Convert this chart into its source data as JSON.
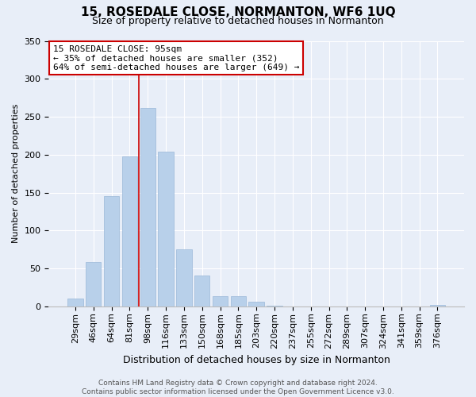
{
  "title": "15, ROSEDALE CLOSE, NORMANTON, WF6 1UQ",
  "subtitle": "Size of property relative to detached houses in Normanton",
  "xlabel": "Distribution of detached houses by size in Normanton",
  "ylabel": "Number of detached properties",
  "bar_labels": [
    "29sqm",
    "46sqm",
    "64sqm",
    "81sqm",
    "98sqm",
    "116sqm",
    "133sqm",
    "150sqm",
    "168sqm",
    "185sqm",
    "203sqm",
    "220sqm",
    "237sqm",
    "255sqm",
    "272sqm",
    "289sqm",
    "307sqm",
    "324sqm",
    "341sqm",
    "359sqm",
    "376sqm"
  ],
  "bar_values": [
    10,
    58,
    145,
    198,
    262,
    204,
    75,
    41,
    13,
    14,
    6,
    1,
    0,
    0,
    0,
    0,
    0,
    0,
    0,
    0,
    2
  ],
  "bar_color": "#b8d0ea",
  "bar_edge_color": "#9ab8d8",
  "vline_color": "#cc0000",
  "vline_x_index": 3.5,
  "ylim": [
    0,
    350
  ],
  "yticks": [
    0,
    50,
    100,
    150,
    200,
    250,
    300,
    350
  ],
  "annotation_title": "15 ROSEDALE CLOSE: 95sqm",
  "annotation_line1": "← 35% of detached houses are smaller (352)",
  "annotation_line2": "64% of semi-detached houses are larger (649) →",
  "annotation_box_facecolor": "#ffffff",
  "annotation_box_edgecolor": "#cc0000",
  "footer_line1": "Contains HM Land Registry data © Crown copyright and database right 2024.",
  "footer_line2": "Contains public sector information licensed under the Open Government Licence v3.0.",
  "bg_color": "#e8eef8",
  "plot_bg_color": "#e8eef8",
  "grid_color": "#ffffff",
  "title_fontsize": 11,
  "subtitle_fontsize": 9,
  "ylabel_fontsize": 8,
  "xlabel_fontsize": 9,
  "tick_fontsize": 8,
  "annotation_fontsize": 8,
  "footer_fontsize": 6.5
}
